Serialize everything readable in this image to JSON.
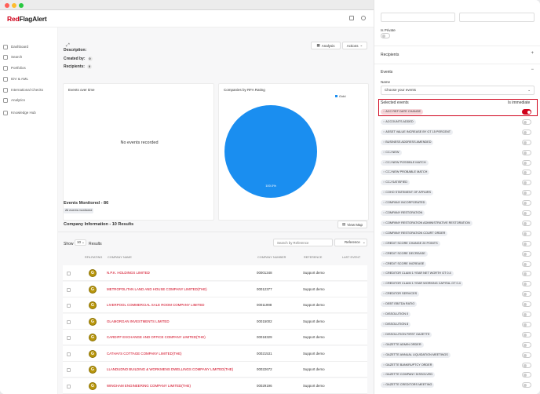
{
  "app": {
    "logo_flag": "Red",
    "logo_rest": "FlagAlert"
  },
  "colors": {
    "brand": "#d0021b",
    "pie": "#1a8ef0",
    "rfa_badge": "#b8960c"
  },
  "sidebar": {
    "items": [
      {
        "label": "Dashboard",
        "icon": "dashboard-icon"
      },
      {
        "label": "Search",
        "icon": "search-icon"
      },
      {
        "label": "Portfolios",
        "icon": "portfolio-icon"
      },
      {
        "label": "IDV & AML",
        "icon": "id-icon"
      },
      {
        "label": "International Checks",
        "icon": "globe-icon"
      },
      {
        "label": "Analytics",
        "icon": "analytics-icon"
      },
      {
        "label": "Knowledge Hub",
        "icon": "book-icon"
      }
    ]
  },
  "main": {
    "description_label": "Description:",
    "created_by_label": "Created by:",
    "created_by_count": "0",
    "recipients_label": "Recipients:",
    "recipients_count": "0",
    "analysis_button": "Analysis",
    "actions_button": "Actions",
    "events_over_time_title": "Events over time",
    "no_events_text": "No events recorded",
    "rfa_chart_title": "Companies by RFA Rating",
    "events_monitored": "Events Monitored - 86",
    "all_events_tag": "All events monitored",
    "company_info_title": "Company Information - 10 Results",
    "view_map_button": "View Map",
    "show_label": "Show",
    "show_value": "10",
    "results_label": "Results",
    "search_placeholder": "Search by Reference",
    "reference_select": "Reference",
    "columns": [
      "RFA RATING",
      "COMPANY NAME",
      "COMPANY NUMBER",
      "REFERENCE",
      "LAST EVENT"
    ],
    "rows": [
      {
        "rating": "G",
        "name": "N.P.K. HOLDINGS LIMITED",
        "number": "00001348",
        "reference": "Support demo"
      },
      {
        "rating": "G",
        "name": "METROPOLITAN LAND AND HOUSE COMPANY LIMITED(THE)",
        "number": "00012377",
        "reference": "Support demo"
      },
      {
        "rating": "G",
        "name": "LIVERPOOL COMMERCIAL SALE ROOM COMPANY LIMITED",
        "number": "00011998",
        "reference": "Support demo"
      },
      {
        "rating": "G",
        "name": "GLAMORGAN INVESTMENTS LIMITED",
        "number": "00015002",
        "reference": "Support demo"
      },
      {
        "rating": "G",
        "name": "CARDIFF EXCHANGE AND OFFICE COMPANY LIMITED(THE)",
        "number": "00018329",
        "reference": "Support demo"
      },
      {
        "rating": "G",
        "name": "CATHAYS COTTAGE COMPANY LIMITED(THE)",
        "number": "00021531",
        "reference": "Support demo"
      },
      {
        "rating": "G",
        "name": "LLANDUDNO BUILDING & WORKMENS DWELLINGS COMPANY LIMITED(THE)",
        "number": "00022672",
        "reference": "Support demo"
      },
      {
        "rating": "G",
        "name": "WINGHAM ENGINEERING COMPANY LIMITED(THE)",
        "number": "00029196",
        "reference": "Support demo"
      }
    ]
  },
  "chart_data": {
    "type": "pie",
    "title": "Companies by RFA Rating",
    "categories": [
      "Gold"
    ],
    "values": [
      100.0
    ],
    "slice_label": "100.0%",
    "legend": "top-right"
  },
  "panel": {
    "is_private_label": "Is Private",
    "recipients_section": "Recipients",
    "events_section": "Events",
    "name_label": "Name",
    "choose_events": "Choose your events",
    "selected_events_label": "Selected events",
    "is_immediate_label": "Is immediate",
    "events": [
      {
        "label": "ACC REF DATE CHANGE",
        "on": true
      },
      {
        "label": "ACCOUNTS ADDED",
        "on": false
      },
      {
        "label": "ASSET VALUE INCREASE BY GT 15 PERCENT",
        "on": false
      },
      {
        "label": "BUSINESS ADDRESS AMENDED",
        "on": false
      },
      {
        "label": "CCJ NEW",
        "on": false
      },
      {
        "label": "CCJ NEW POSSIBLE MATCH",
        "on": false
      },
      {
        "label": "CCJ NEW PROBABLE MATCH",
        "on": false
      },
      {
        "label": "CCJ SATISFIED",
        "on": false
      },
      {
        "label": "COHO STATEMENT OF AFFAIRS",
        "on": false
      },
      {
        "label": "COMPANY INCORPORATED",
        "on": false
      },
      {
        "label": "COMPANY RESTORATION",
        "on": false
      },
      {
        "label": "COMPANY RESTORATION ADMINISTRATIVE RESTORATION",
        "on": false
      },
      {
        "label": "COMPANY RESTORATION COURT ORDER",
        "on": false
      },
      {
        "label": "CREDIT SCORE CHANGE 20 POINTS",
        "on": false
      },
      {
        "label": "CREDIT SCORE DECREASE",
        "on": false
      },
      {
        "label": "CREDIT SCORE INCREASE",
        "on": false
      },
      {
        "label": "CREDITOR CLAIM 1 YEAR NET WORTH GT 0.4",
        "on": false
      },
      {
        "label": "CREDITOR CLAIM 1 YEAR WORKING CAPITAL GT 0.4",
        "on": false
      },
      {
        "label": "CREDITOR SERVICES",
        "on": false
      },
      {
        "label": "DEBT EBITDA RATIO",
        "on": false
      },
      {
        "label": "DISSOLUTION 0",
        "on": false
      },
      {
        "label": "DISSOLUTION 8",
        "on": false
      },
      {
        "label": "DISSOLUTION FIRST GAZETTE",
        "on": false
      },
      {
        "label": "GAZETTE ADMIN ORDER",
        "on": false
      },
      {
        "label": "GAZETTE ANNUAL LIQUIDATION MEETINGS",
        "on": false
      },
      {
        "label": "GAZETTE BANKRUPTCY ORDER",
        "on": false
      },
      {
        "label": "GAZETTE COMPANY DISSOLVED",
        "on": false
      },
      {
        "label": "GAZETTE CREDITORS MEETING",
        "on": false
      }
    ]
  }
}
